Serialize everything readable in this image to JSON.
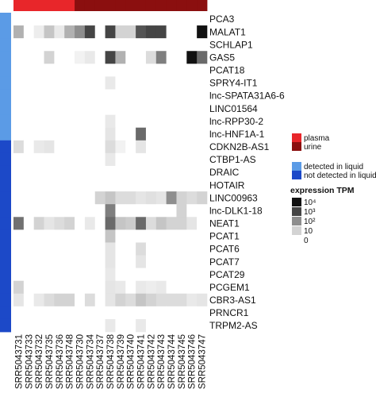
{
  "chart_data": {
    "type": "heatmap",
    "title": "",
    "xlabel": "",
    "ylabel": "",
    "samples": [
      "SRR5043731",
      "SRR5043733",
      "SRR5043732",
      "SRR5043735",
      "SRR5043736",
      "SRR5043748",
      "SRR5043730",
      "SRR5043734",
      "SRR5043737",
      "SRR5043738",
      "SRR5043739",
      "SRR5043740",
      "SRR5043741",
      "SRR5043742",
      "SRR5043743",
      "SRR5043744",
      "SRR5043745",
      "SRR5043746",
      "SRR5043747"
    ],
    "sample_source": [
      "plasma",
      "plasma",
      "plasma",
      "plasma",
      "plasma",
      "plasma",
      "urine",
      "urine",
      "urine",
      "urine",
      "urine",
      "urine",
      "urine",
      "urine",
      "urine",
      "urine",
      "urine",
      "urine",
      "urine"
    ],
    "genes": [
      "PCA3",
      "MALAT1",
      "SCHLAP1",
      "GAS5",
      "PCAT18",
      "SPRY4-IT1",
      "lnc-SPATA31A6-6",
      "LINC01564",
      "lnc-RPP30-2",
      "lnc-HNF1A-1",
      "CDKN2B-AS1",
      "CTBP1-AS",
      "DRAIC",
      "HOTAIR",
      "LINC00963",
      "lnc-DLK1-18",
      "NEAT1",
      "PCAT1",
      "PCAT6",
      "PCAT7",
      "PCAT29",
      "PCGEM1",
      "CBR3-AS1",
      "PRNCR1",
      "TRPM2-AS"
    ],
    "gene_detection": [
      "detected in liquid",
      "detected in liquid",
      "detected in liquid",
      "detected in liquid",
      "detected in liquid",
      "detected in liquid",
      "detected in liquid",
      "detected in liquid",
      "detected in liquid",
      "detected in liquid",
      "not detected in liquid",
      "not detected in liquid",
      "not detected in liquid",
      "not detected in liquid",
      "not detected in liquid",
      "not detected in liquid",
      "not detected in liquid",
      "not detected in liquid",
      "not detected in liquid",
      "not detected in liquid",
      "not detected in liquid",
      "not detected in liquid",
      "not detected in liquid",
      "not detected in liquid",
      "not detected in liquid"
    ],
    "levels": [
      [
        0,
        0,
        0,
        0,
        0,
        0,
        0,
        0,
        0,
        0,
        0,
        0,
        0,
        0,
        0,
        0,
        0,
        0,
        0
      ],
      [
        1.5,
        0,
        0.4,
        1.2,
        0.5,
        1.5,
        2,
        3,
        0,
        3,
        1,
        1,
        2.8,
        3,
        3,
        0,
        0,
        0,
        4
      ],
      [
        0,
        0,
        0,
        0,
        0,
        0,
        0,
        0,
        0,
        0,
        0,
        0,
        0,
        0,
        0,
        0,
        0,
        0,
        0
      ],
      [
        0,
        0,
        0,
        1,
        0,
        0,
        0.3,
        0.5,
        0,
        3,
        1.5,
        0,
        0,
        0.8,
        2.2,
        0,
        0,
        4,
        2.5
      ],
      [
        0,
        0,
        0,
        0,
        0,
        0,
        0,
        0,
        0,
        0,
        0,
        0,
        0,
        0,
        0,
        0,
        0,
        0,
        0
      ],
      [
        0,
        0,
        0,
        0,
        0,
        0,
        0,
        0,
        0,
        0.5,
        0,
        0,
        0,
        0,
        0,
        0,
        0,
        0,
        0
      ],
      [
        0,
        0,
        0,
        0,
        0,
        0,
        0,
        0,
        0,
        0,
        0,
        0,
        0,
        0,
        0,
        0,
        0,
        0,
        0
      ],
      [
        0,
        0,
        0,
        0,
        0,
        0,
        0,
        0,
        0,
        0,
        0,
        0,
        0,
        0,
        0,
        0,
        0,
        0,
        0
      ],
      [
        0,
        0,
        0,
        0,
        0,
        0,
        0,
        0,
        0,
        0.5,
        0,
        0,
        0,
        0,
        0,
        0,
        0,
        0,
        0
      ],
      [
        0,
        0,
        0,
        0,
        0,
        0,
        0,
        0,
        0,
        0.6,
        0,
        0,
        2.5,
        0,
        0,
        0,
        0,
        0,
        0
      ],
      [
        0.8,
        0,
        0.5,
        0.6,
        0,
        0,
        0,
        0,
        0,
        0.8,
        0.3,
        0,
        0.6,
        0,
        0,
        0,
        0,
        0,
        0
      ],
      [
        0,
        0,
        0,
        0,
        0,
        0,
        0,
        0,
        0,
        0.5,
        0,
        0,
        0,
        0,
        0,
        0,
        0,
        0,
        0
      ],
      [
        0,
        0,
        0,
        0,
        0,
        0,
        0,
        0,
        0,
        0,
        0,
        0,
        0,
        0,
        0,
        0,
        0,
        0,
        0
      ],
      [
        0,
        0,
        0,
        0,
        0,
        0,
        0,
        0,
        0,
        0,
        0,
        0,
        0,
        0,
        0,
        0,
        0,
        0,
        0
      ],
      [
        0,
        0,
        0,
        0,
        0,
        0,
        0,
        0,
        1,
        1.2,
        0.8,
        0.8,
        0.6,
        0.7,
        0.6,
        2,
        1,
        0.8,
        1
      ],
      [
        0,
        0,
        0,
        0,
        0,
        0,
        0,
        0,
        0,
        2.2,
        0,
        0,
        0,
        0,
        0,
        0,
        1,
        0,
        0
      ],
      [
        2.4,
        0,
        1,
        0.6,
        0.8,
        1,
        0,
        0.5,
        0,
        2.5,
        1.2,
        1.1,
        2.5,
        0.8,
        1.2,
        1,
        1,
        0.6,
        0
      ],
      [
        0,
        0,
        0,
        0,
        0,
        0,
        0,
        0,
        0,
        1.2,
        0,
        0,
        0,
        0,
        0,
        0,
        0,
        0,
        0
      ],
      [
        0,
        0,
        0,
        0,
        0,
        0,
        0,
        0,
        0,
        0.6,
        0,
        0,
        0.8,
        0,
        0,
        0,
        0,
        0,
        0
      ],
      [
        0,
        0,
        0,
        0,
        0,
        0,
        0,
        0,
        0,
        0.6,
        0,
        0,
        0.6,
        0,
        0,
        0,
        0,
        0,
        0
      ],
      [
        0,
        0,
        0,
        0,
        0,
        0,
        0,
        0,
        0,
        0.5,
        0,
        0,
        0,
        0,
        0,
        0,
        0,
        0,
        0
      ],
      [
        1,
        0,
        0,
        0,
        0,
        0,
        0,
        0,
        0,
        0.6,
        0.5,
        0,
        0.5,
        0.4,
        0.5,
        0,
        0,
        0,
        0
      ],
      [
        0.6,
        0,
        0.5,
        0.8,
        1,
        1,
        0,
        0.8,
        0,
        0.6,
        1,
        0.8,
        1.2,
        1,
        0.8,
        0.8,
        0.8,
        0.5,
        0.6
      ],
      [
        0,
        0,
        0,
        0,
        0,
        0,
        0,
        0,
        0,
        0,
        0,
        0,
        0,
        0,
        0,
        0,
        0,
        0,
        0
      ],
      [
        0,
        0,
        0,
        0,
        0,
        0,
        0,
        0,
        0,
        0.5,
        0,
        0,
        0.5,
        0,
        0,
        0,
        0,
        0,
        0
      ]
    ],
    "legend": {
      "source": [
        {
          "label": "plasma",
          "color": "#e8262a"
        },
        {
          "label": "urine",
          "color": "#8b0f0f"
        }
      ],
      "detection": [
        {
          "label": "detected in liquid",
          "color": "#5b9be6"
        },
        {
          "label": "not detected in liquid",
          "color": "#1c49c8"
        }
      ],
      "expression_title": "expression TPM",
      "expression": [
        {
          "label": "10⁴",
          "level": 4
        },
        {
          "label": "10³",
          "level": 3
        },
        {
          "label": "10²",
          "level": 2
        },
        {
          "label": "10",
          "level": 1
        },
        {
          "label": "0",
          "level": 0
        }
      ]
    },
    "level_colors": [
      "#ffffff",
      "#d3d3d3",
      "#8e8e8e",
      "#454545",
      "#111111"
    ]
  }
}
